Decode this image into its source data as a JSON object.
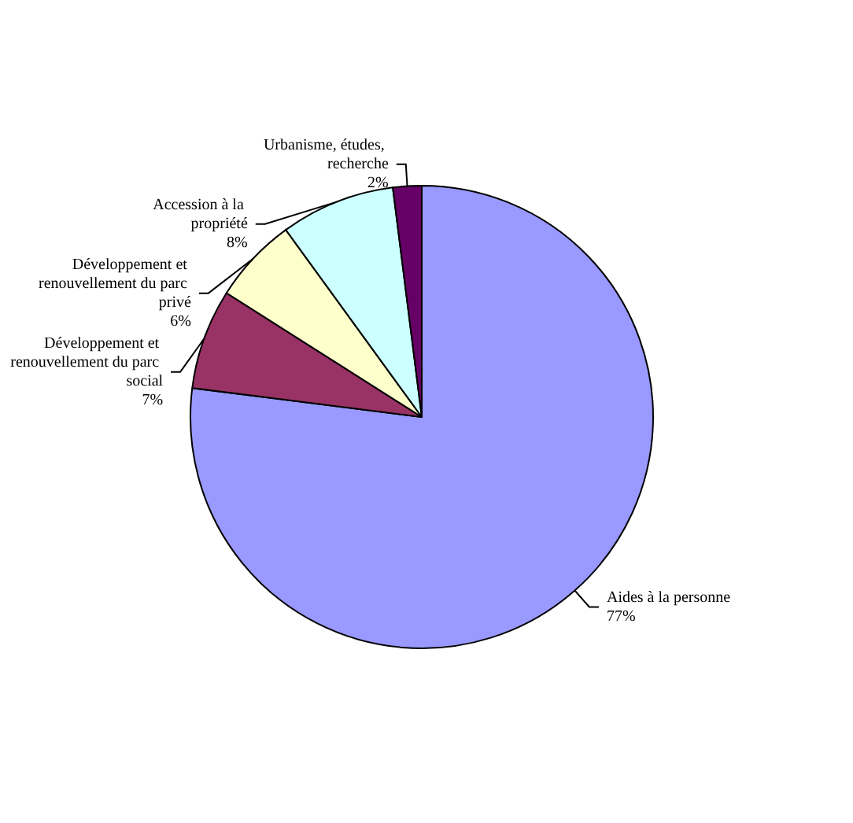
{
  "chart_data": {
    "type": "pie",
    "categories": [
      "Aides à la personne",
      "Développement et renouvellement du parc social",
      "Développement et renouvellement du parc privé",
      "Accession à la propriété",
      "Urbanisme, études, recherche"
    ],
    "values": [
      77,
      7,
      6,
      8,
      2
    ],
    "value_labels": [
      "77%",
      "7%",
      "6%",
      "8%",
      "2%"
    ],
    "colors": [
      "#9999ff",
      "#993366",
      "#ffffcc",
      "#ccffff",
      "#660066"
    ],
    "legend": false
  }
}
